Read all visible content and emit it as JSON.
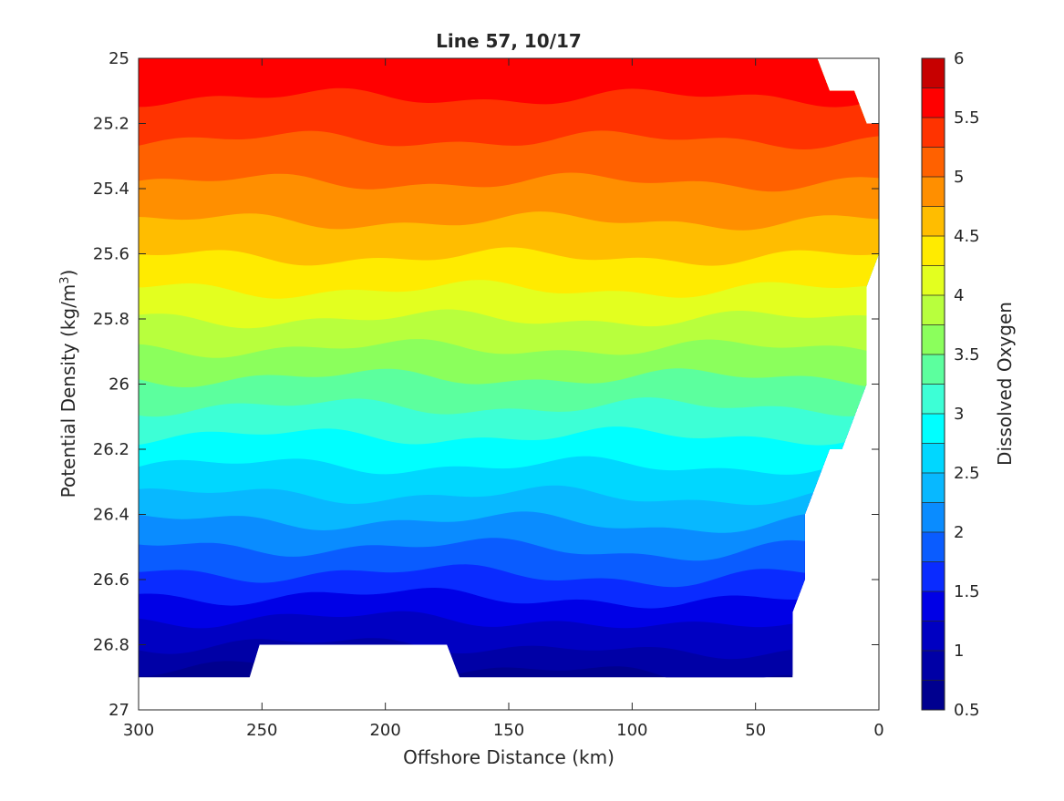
{
  "chart_data": {
    "type": "heatmap",
    "subtype": "filled-contour",
    "title": "Line 57, 10/17",
    "xlabel": "Offshore Distance (km)",
    "ylabel": "Potential Density (kg/m3)",
    "ylabel_parts": {
      "main": "Potential Density (kg/m",
      "superscript": "3",
      "suffix": ")"
    },
    "colorbar_label": "Dissolved Oxygen",
    "x_axis": {
      "range": [
        300,
        0
      ],
      "reversed": true,
      "ticks": [
        300,
        250,
        200,
        150,
        100,
        50,
        0
      ],
      "tick_labels": [
        "300",
        "250",
        "200",
        "150",
        "100",
        "50",
        "0"
      ]
    },
    "y_axis": {
      "range": [
        25,
        27
      ],
      "reversed": true,
      "ticks": [
        25,
        25.2,
        25.4,
        25.6,
        25.8,
        26,
        26.2,
        26.4,
        26.6,
        26.8,
        27
      ],
      "tick_labels": [
        "25",
        "25.2",
        "25.4",
        "25.6",
        "25.8",
        "26",
        "26.2",
        "26.4",
        "26.6",
        "26.8",
        "27"
      ]
    },
    "colorbar": {
      "range": [
        0.5,
        6
      ],
      "ticks": [
        0.5,
        1,
        1.5,
        2,
        2.5,
        3,
        3.5,
        4,
        4.5,
        5,
        5.5,
        6
      ],
      "tick_labels": [
        "0.5",
        "1",
        "1.5",
        "2",
        "2.5",
        "3",
        "3.5",
        "4",
        "4.5",
        "5",
        "5.5",
        "6"
      ],
      "level_step": 0.25,
      "colormap": "jet",
      "levels": [
        {
          "min": 0.5,
          "max": 0.75,
          "color": "#00008f"
        },
        {
          "min": 0.75,
          "max": 1.0,
          "color": "#0000a6"
        },
        {
          "min": 1.0,
          "max": 1.25,
          "color": "#0000c2"
        },
        {
          "min": 1.25,
          "max": 1.5,
          "color": "#0000e6"
        },
        {
          "min": 1.5,
          "max": 1.75,
          "color": "#0a2bff"
        },
        {
          "min": 1.75,
          "max": 2.0,
          "color": "#0a5cff"
        },
        {
          "min": 2.0,
          "max": 2.25,
          "color": "#0a8cff"
        },
        {
          "min": 2.25,
          "max": 2.5,
          "color": "#08b8ff"
        },
        {
          "min": 2.5,
          "max": 2.75,
          "color": "#00d7ff"
        },
        {
          "min": 2.75,
          "max": 3.0,
          "color": "#00ffff"
        },
        {
          "min": 3.0,
          "max": 3.25,
          "color": "#3dffd6"
        },
        {
          "min": 3.25,
          "max": 3.5,
          "color": "#5cff9e"
        },
        {
          "min": 3.5,
          "max": 3.75,
          "color": "#8bff5c"
        },
        {
          "min": 3.75,
          "max": 4.0,
          "color": "#b8ff3d"
        },
        {
          "min": 4.0,
          "max": 4.25,
          "color": "#e3ff1f"
        },
        {
          "min": 4.25,
          "max": 4.5,
          "color": "#ffeb00"
        },
        {
          "min": 4.5,
          "max": 4.75,
          "color": "#ffbd00"
        },
        {
          "min": 4.75,
          "max": 5.0,
          "color": "#ff8f00"
        },
        {
          "min": 5.0,
          "max": 5.25,
          "color": "#ff6100"
        },
        {
          "min": 5.25,
          "max": 5.5,
          "color": "#ff3300"
        },
        {
          "min": 5.5,
          "max": 5.75,
          "color": "#ff0000"
        },
        {
          "min": 5.75,
          "max": 6.0,
          "color": "#c70000"
        }
      ]
    },
    "oxygen_profile": {
      "levels": [
        0.75,
        1.0,
        1.25,
        1.5,
        1.75,
        2.0,
        2.25,
        2.5,
        2.75,
        3.0,
        3.25,
        3.5,
        3.75,
        4.0,
        4.25,
        4.5,
        4.75,
        5.0,
        5.25,
        5.5
      ],
      "density_at_levels": [
        26.87,
        26.8,
        26.72,
        26.65,
        26.58,
        26.5,
        26.42,
        26.34,
        26.25,
        26.16,
        26.07,
        25.98,
        25.89,
        25.8,
        25.71,
        25.61,
        25.5,
        25.38,
        25.25,
        25.12
      ]
    },
    "data_coverage": {
      "outline": [
        [
          300,
          25
        ],
        [
          25,
          25
        ],
        [
          20,
          25.1
        ],
        [
          10,
          25.1
        ],
        [
          5,
          25.2
        ],
        [
          0,
          25.2
        ],
        [
          0,
          25.6
        ],
        [
          5,
          25.7
        ],
        [
          5,
          26.0
        ],
        [
          15,
          26.2
        ],
        [
          20,
          26.2
        ],
        [
          30,
          26.4
        ],
        [
          30,
          26.6
        ],
        [
          35,
          26.7
        ],
        [
          35,
          26.9
        ],
        [
          170,
          26.9
        ],
        [
          175,
          26.8
        ],
        [
          251,
          26.8
        ],
        [
          255,
          26.9
        ],
        [
          300,
          26.9
        ]
      ]
    }
  }
}
